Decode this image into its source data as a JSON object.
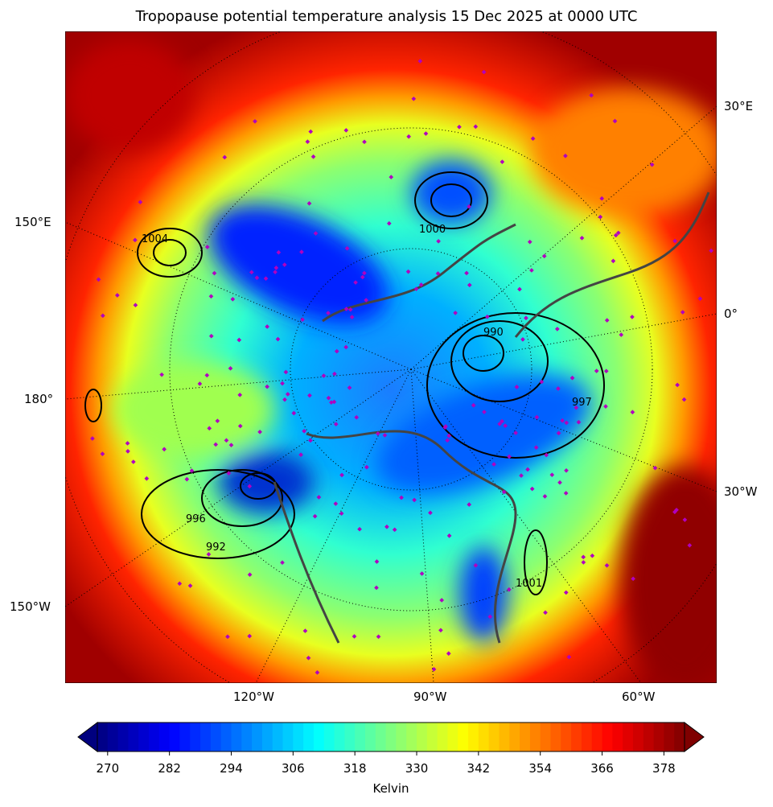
{
  "title": "Tropopause potential temperature analysis 15 Dec 2025 at 0000 UTC",
  "map": {
    "projection": "north polar stereographic",
    "lon_labels": {
      "right": [
        "30°E",
        "0°",
        "30°W"
      ],
      "left": [
        "150°E",
        "180°",
        "150°W"
      ],
      "bottom": [
        "120°W",
        "90°W",
        "60°W"
      ]
    },
    "contour_labels": [
      "1004",
      "996",
      "992",
      "990",
      "1000",
      "997",
      "1001"
    ],
    "colors": {
      "coastlines": "#444444",
      "markers": "#b000c0",
      "contours": "#000000"
    }
  },
  "colorbar": {
    "colormap": "jet",
    "min": 268,
    "max": 382,
    "step": 2,
    "extend": "both",
    "ticks": [
      "270",
      "282",
      "294",
      "306",
      "318",
      "330",
      "342",
      "354",
      "366",
      "378"
    ],
    "label": "Kelvin"
  }
}
